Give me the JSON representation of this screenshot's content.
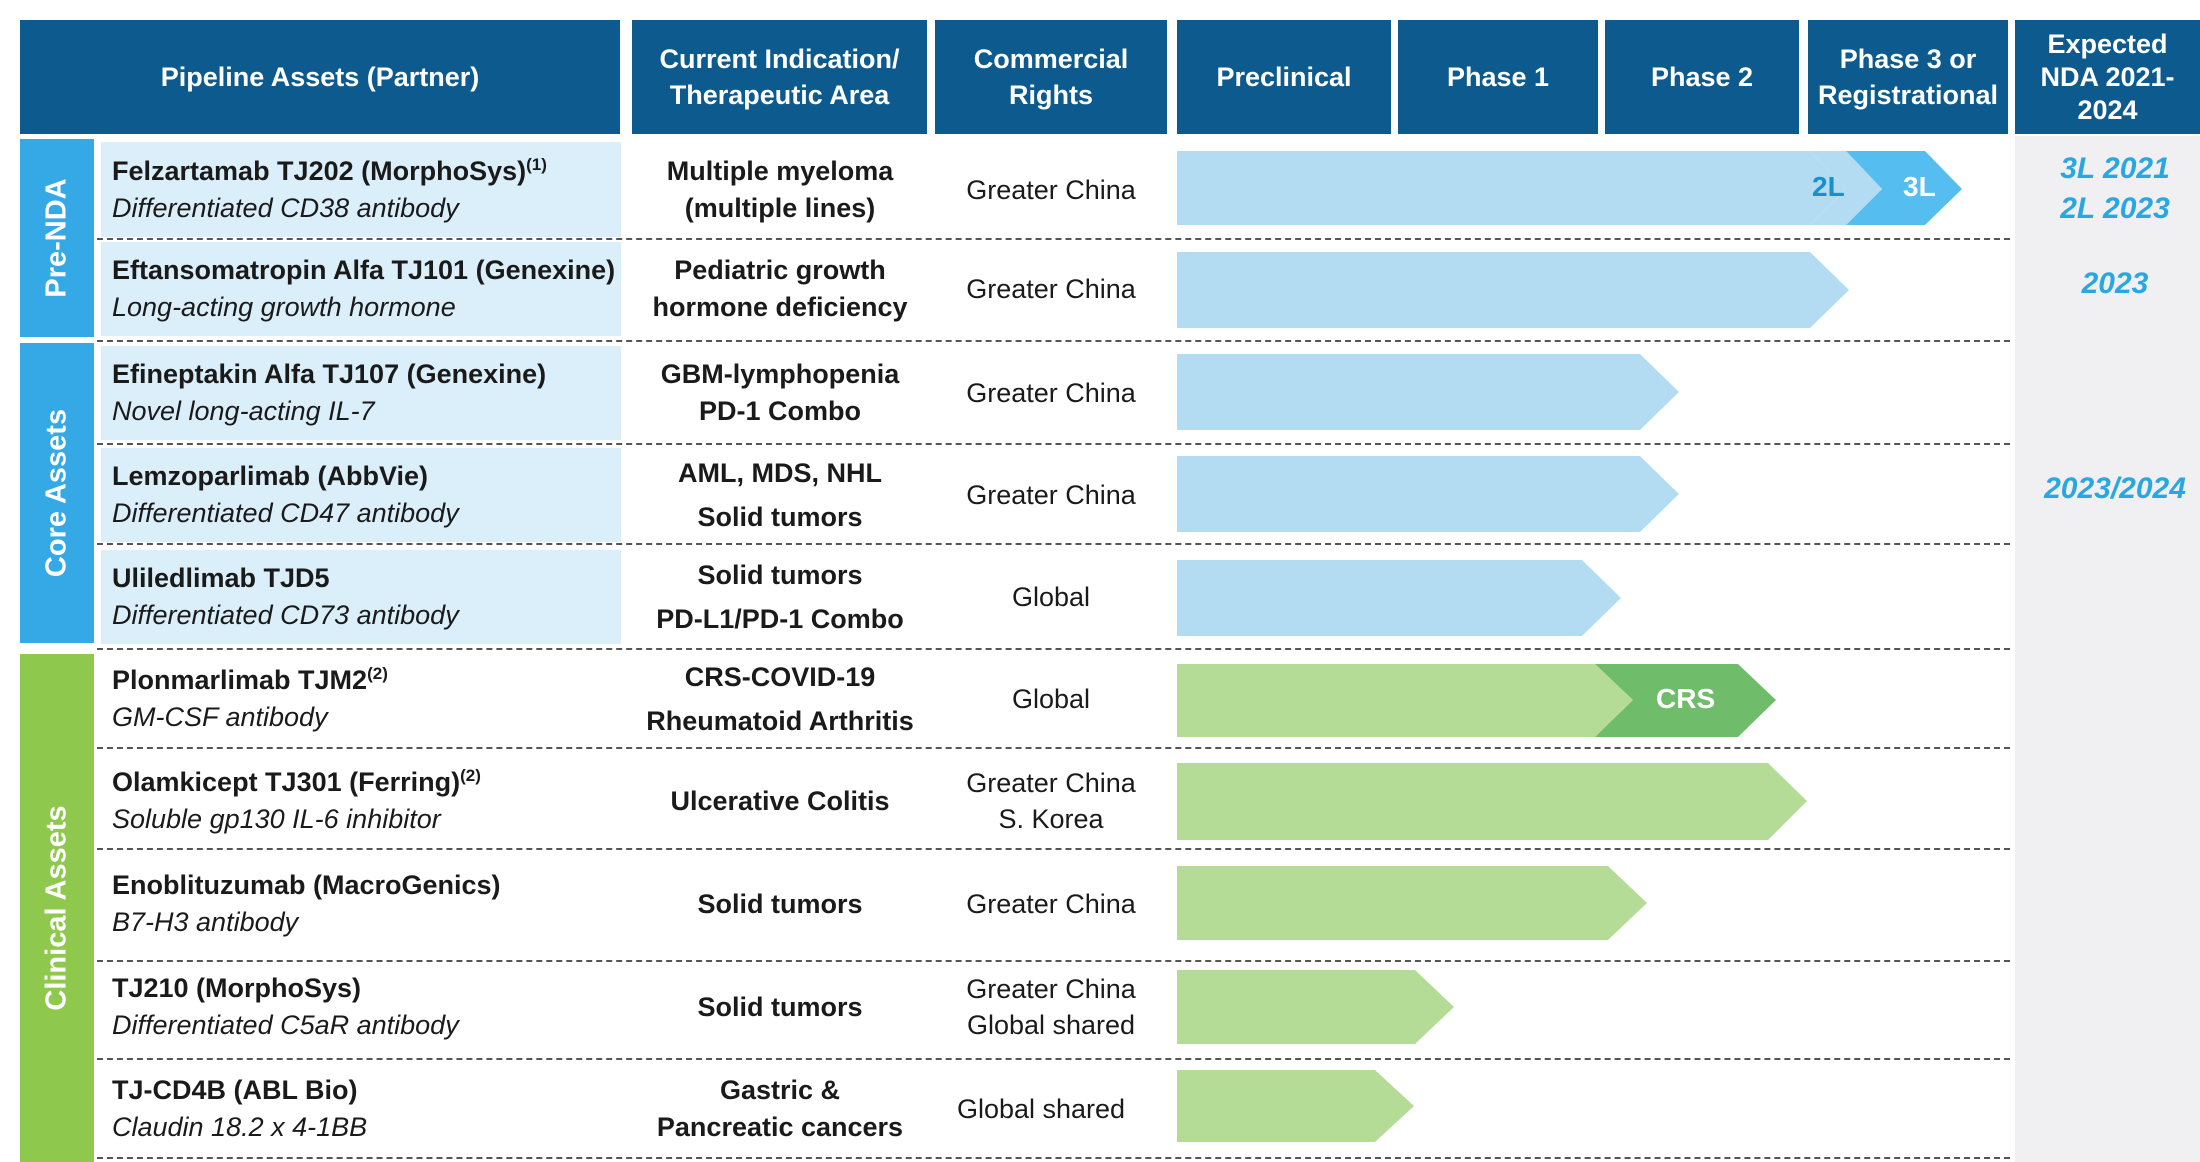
{
  "colors": {
    "header_bg": "#0c5a8e",
    "prenda_core_label_bg": "#35a8e6",
    "clinical_label_bg": "#8ec94e",
    "blue_arrow": "#b3dcf3",
    "blue_arrow_3l": "#55bdf0",
    "green_arrow": "#b5dc96",
    "green_arrow_crs": "#6fbd6b",
    "nda_text": "#2aa7e0",
    "asset_highlight": "#dbeffb"
  },
  "headers": {
    "assets": "Pipeline Assets (Partner)",
    "indication": "Current Indication/\nTherapeutic Area",
    "rights": "Commercial\nRights",
    "preclinical": "Preclinical",
    "phase1": "Phase 1",
    "phase2": "Phase 2",
    "phase3": "Phase 3 or\nRegistrational",
    "nda": "Expected\nNDA 2021-\n2024"
  },
  "groups": {
    "prenda": "Pre-NDA",
    "core": "Core Assets",
    "clinical": "Clinical Assets"
  },
  "rows": [
    {
      "name": "Felzartamab TJ202 (MorphoSys)",
      "sup": "(1)",
      "desc": "Differentiated CD38 antibody",
      "indication": [
        "Multiple myeloma",
        "(multiple lines)"
      ],
      "rights": [
        "Greater China"
      ],
      "stage": "Phase 3 or Registrational",
      "stage_labels": [
        "2L",
        "3L"
      ]
    },
    {
      "name": "Eftansomatropin Alfa TJ101 (Genexine)",
      "sup": "",
      "desc": "Long-acting growth hormone",
      "indication": [
        "Pediatric growth",
        "hormone deficiency"
      ],
      "rights": [
        "Greater China"
      ],
      "stage": "Phase 3 or Registrational"
    },
    {
      "name": "Efineptakin Alfa TJ107 (Genexine)",
      "sup": "",
      "desc": "Novel long-acting IL-7",
      "indication": [
        "GBM-lymphopenia",
        "PD-1 Combo"
      ],
      "rights": [
        "Greater China"
      ],
      "stage": "Phase 2"
    },
    {
      "name": "Lemzoparlimab (AbbVie)",
      "sup": "",
      "desc": "Differentiated CD47 antibody",
      "indication": [
        "AML, MDS, NHL",
        "Solid tumors"
      ],
      "rights": [
        "Greater China"
      ],
      "stage": "Phase 2"
    },
    {
      "name": "Uliledlimab TJD5",
      "sup": "",
      "desc": "Differentiated CD73 antibody",
      "indication": [
        "Solid tumors",
        "PD-L1/PD-1 Combo"
      ],
      "rights": [
        "Global"
      ],
      "stage": "Phase 2"
    },
    {
      "name": "Plonmarlimab TJM2",
      "sup": "(2)",
      "desc": "GM-CSF antibody",
      "indication": [
        "CRS-COVID-19",
        "Rheumatoid Arthritis"
      ],
      "rights": [
        "Global"
      ],
      "stage": "Phase 2",
      "stage_labels": [
        "CRS"
      ]
    },
    {
      "name": "Olamkicept TJ301 (Ferring)",
      "sup": "(2)",
      "desc": "Soluble gp130 IL-6 inhibitor",
      "indication": [
        "Ulcerative Colitis"
      ],
      "rights": [
        "Greater China",
        "S. Korea"
      ],
      "stage": "Phase 2"
    },
    {
      "name": "Enoblituzumab (MacroGenics)",
      "sup": "",
      "desc": "B7-H3 antibody",
      "indication": [
        "Solid tumors"
      ],
      "rights": [
        "Greater China"
      ],
      "stage": "Phase 2"
    },
    {
      "name": "TJ210 (MorphoSys)",
      "sup": "",
      "desc": "Differentiated C5aR antibody",
      "indication": [
        "Solid tumors"
      ],
      "rights": [
        "Greater China",
        "Global shared"
      ],
      "stage": "Phase 1"
    },
    {
      "name": "TJ-CD4B (ABL Bio)",
      "sup": "",
      "desc": "Claudin 18.2 x 4-1BB",
      "indication": [
        "Gastric &",
        "Pancreatic cancers"
      ],
      "rights": [
        "Global shared"
      ],
      "stage": "Phase 1"
    }
  ],
  "nda": {
    "felzartamab": [
      "3L 2021",
      "2L 2023"
    ],
    "eftansomatropin": "2023",
    "core": "2023/2024"
  }
}
